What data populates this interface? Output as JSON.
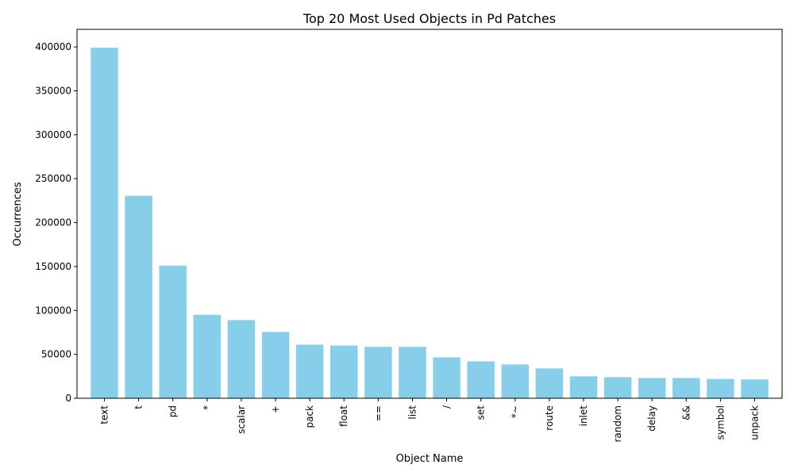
{
  "chart_data": {
    "type": "bar",
    "title": "Top 20 Most Used Objects in Pd Patches",
    "xlabel": "Object Name",
    "ylabel": "Occurrences",
    "categories": [
      "text",
      "t",
      "pd",
      "*",
      "scalar",
      "+",
      "pack",
      "float",
      "==",
      "list",
      "/",
      "set",
      "*~",
      "route",
      "inlet",
      "random",
      "delay",
      "&&",
      "symbol",
      "unpack"
    ],
    "values": [
      399000,
      230500,
      151000,
      95000,
      89000,
      75500,
      61000,
      60000,
      58500,
      58500,
      46500,
      42000,
      38500,
      34000,
      25000,
      24000,
      23000,
      23000,
      22000,
      21500
    ],
    "ylim": [
      0,
      420000
    ],
    "yticks": [
      0,
      50000,
      100000,
      150000,
      200000,
      250000,
      300000,
      350000,
      400000
    ],
    "bar_color": "#87CEEB",
    "grid": false,
    "legend": "none"
  }
}
